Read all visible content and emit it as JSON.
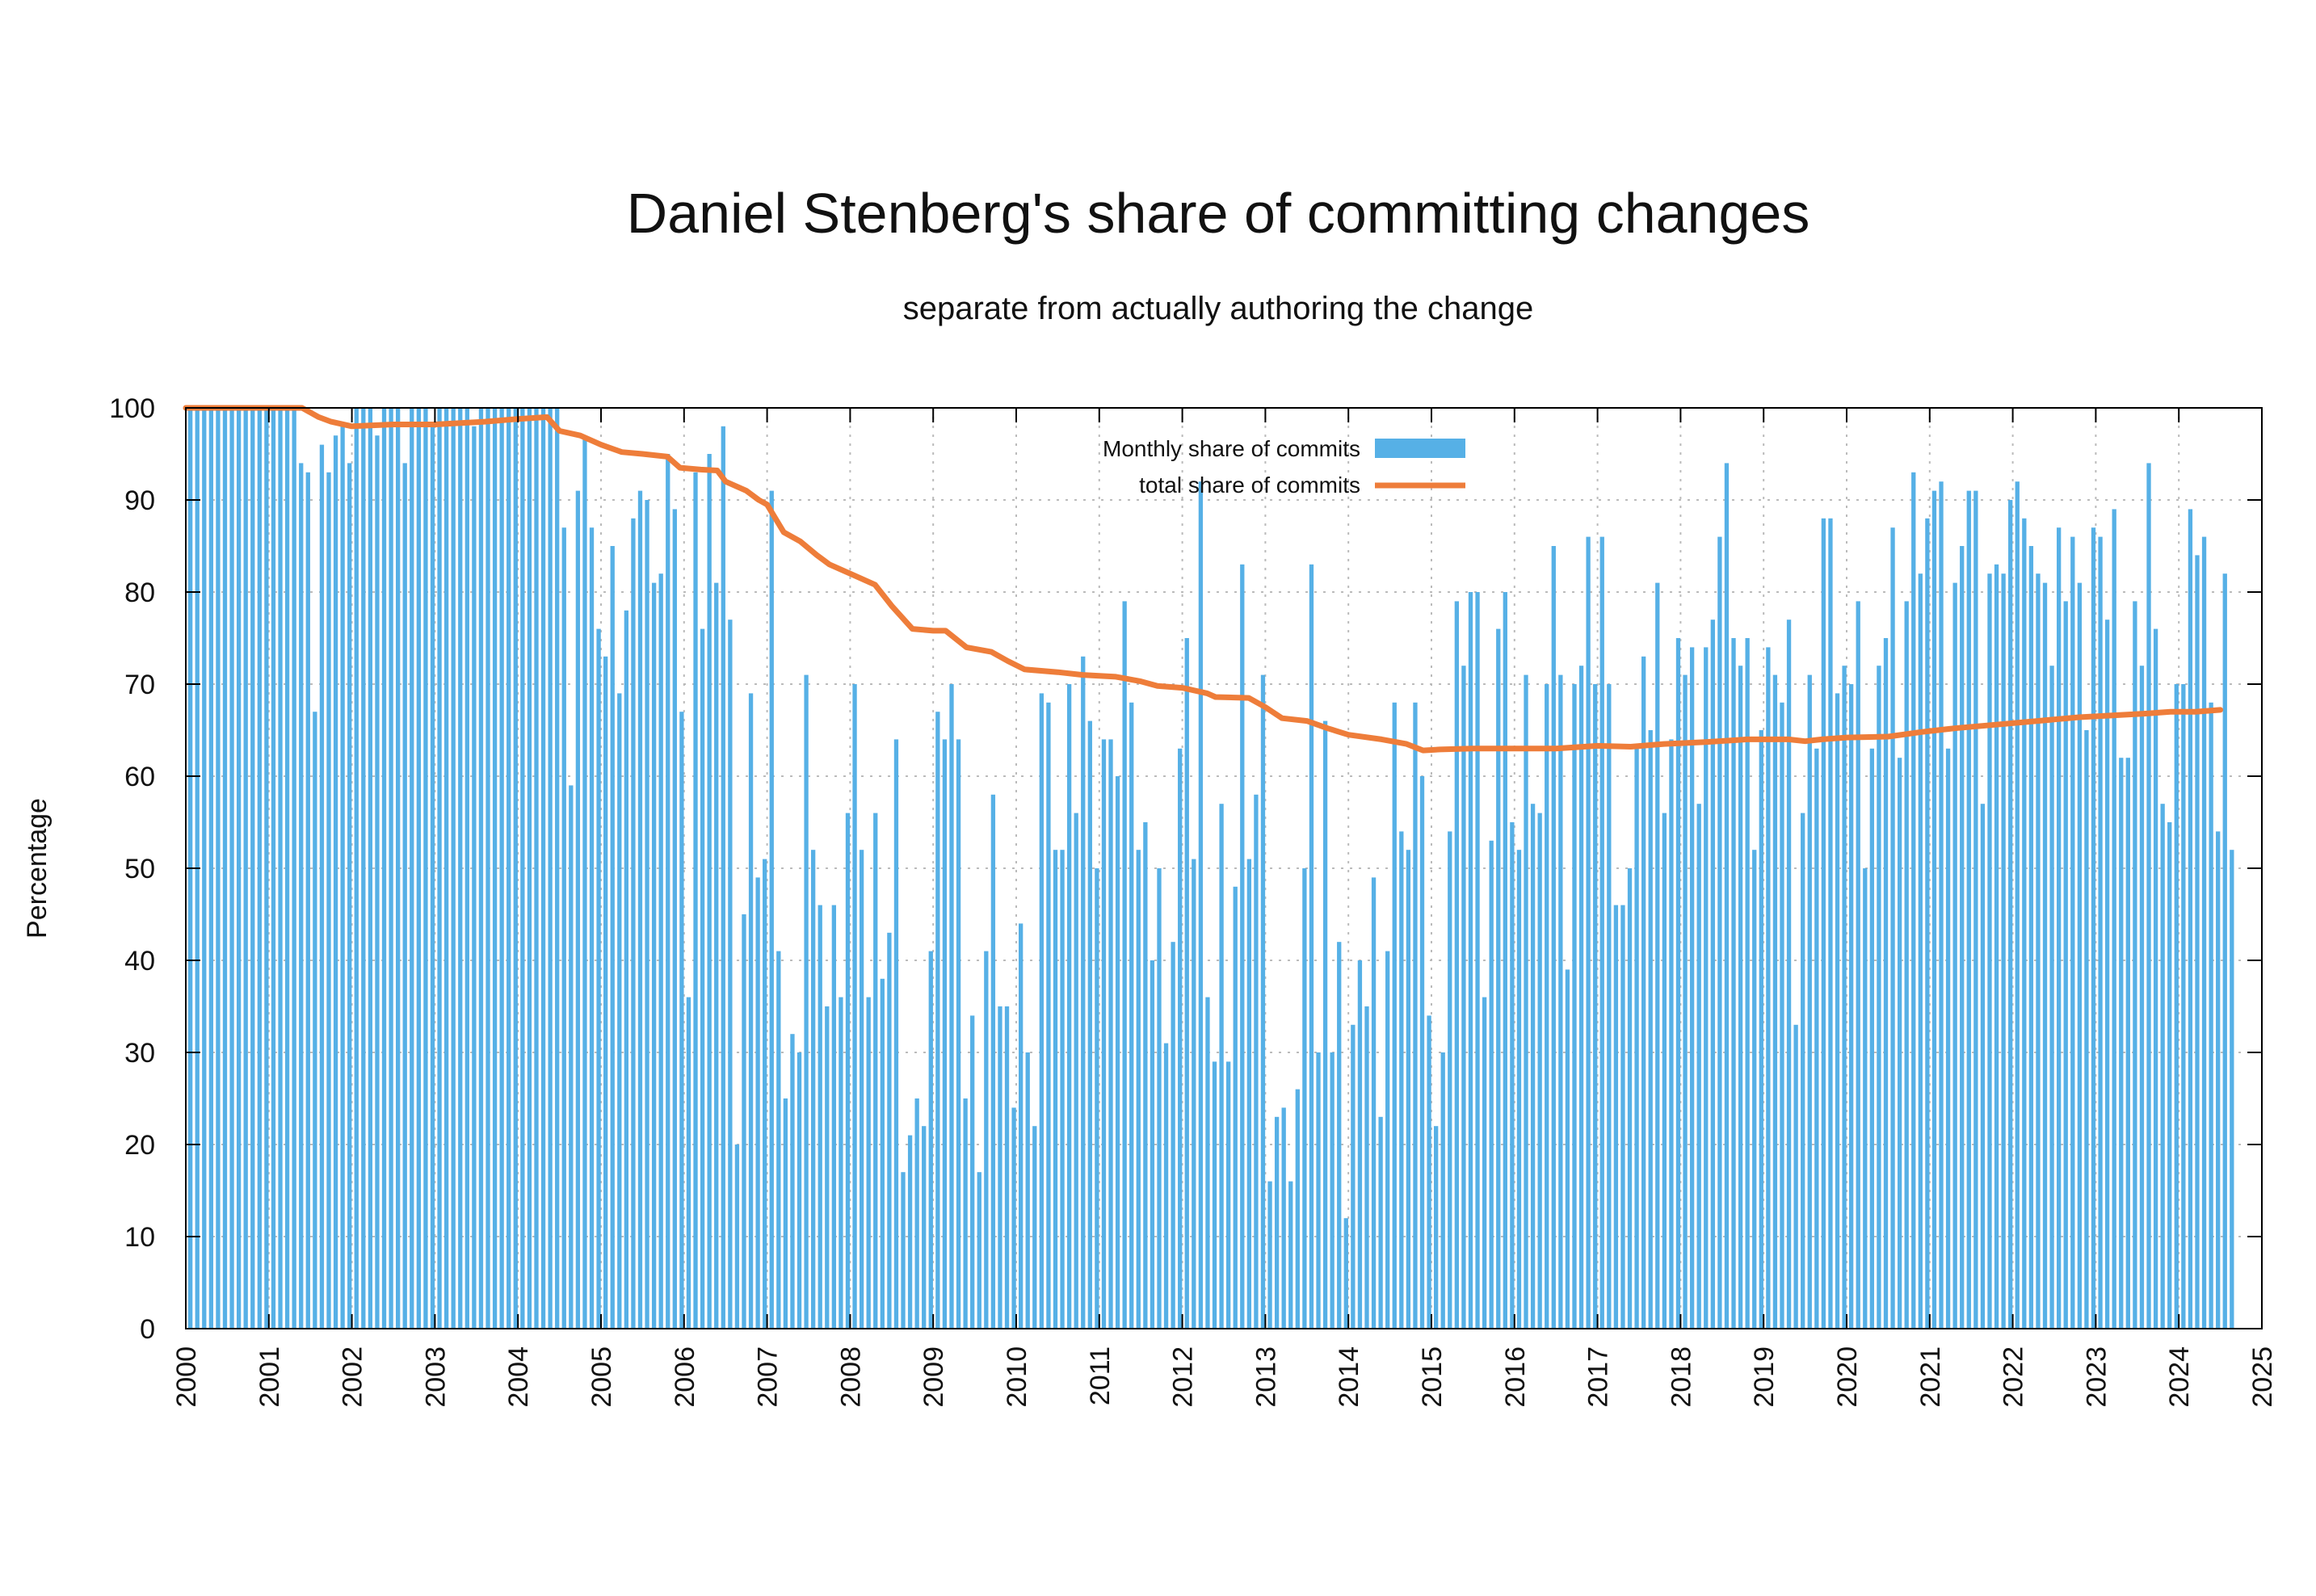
{
  "chart_data": {
    "type": "bar",
    "title": "Daniel Stenberg's share of committing changes",
    "subtitle": "separate from actually authoring the change",
    "xlabel": "",
    "ylabel": "Percentage",
    "ylim": [
      0,
      100
    ],
    "xlim": [
      2000,
      2025
    ],
    "yticks": [
      "0",
      "10",
      "20",
      "30",
      "40",
      "50",
      "60",
      "70",
      "80",
      "90",
      "100"
    ],
    "xticks": [
      "2000",
      "2001",
      "2002",
      "2003",
      "2004",
      "2005",
      "2006",
      "2007",
      "2008",
      "2009",
      "2010",
      "2011",
      "2012",
      "2013",
      "2014",
      "2015",
      "2016",
      "2017",
      "2018",
      "2019",
      "2020",
      "2021",
      "2022",
      "2023",
      "2024",
      "2025"
    ],
    "grid": true,
    "legend_position": "top-center",
    "colors": {
      "bars": "#56b0e6",
      "line": "#ee7d3a",
      "grid": "#bbbbbb",
      "axis": "#000000"
    },
    "series": [
      {
        "name": "Monthly share of commits",
        "type": "bar",
        "start_year": 2000,
        "months_per_year": 12,
        "values": [
          100,
          100,
          100,
          100,
          100,
          100,
          100,
          100,
          100,
          100,
          100,
          100,
          100,
          100,
          100,
          100,
          94,
          93,
          67,
          96,
          93,
          97,
          98,
          94,
          100,
          100,
          100,
          97,
          100,
          100,
          100,
          94,
          100,
          100,
          100,
          98,
          100,
          100,
          100,
          100,
          100,
          98,
          100,
          100,
          100,
          100,
          100,
          100,
          100,
          100,
          100,
          100,
          100,
          100,
          87,
          59,
          91,
          97,
          87,
          76,
          73,
          85,
          69,
          78,
          88,
          91,
          90,
          81,
          82,
          95,
          89,
          67,
          36,
          93,
          76,
          95,
          81,
          98,
          77,
          20,
          45,
          69,
          49,
          51,
          91,
          41,
          25,
          32,
          30,
          71,
          52,
          46,
          35,
          46,
          36,
          56,
          70,
          52,
          36,
          56,
          38,
          43,
          64,
          17,
          21,
          25,
          22,
          41,
          67,
          64,
          70,
          64,
          25,
          34,
          17,
          41,
          58,
          35,
          35,
          24,
          44,
          30,
          22,
          69,
          68,
          52,
          52,
          70,
          56,
          73,
          66,
          50,
          64,
          64,
          60,
          79,
          68,
          52,
          55,
          40,
          50,
          31,
          42,
          63,
          75,
          51,
          92,
          36,
          29,
          57,
          29,
          48,
          83,
          51,
          58,
          71,
          16,
          23,
          24,
          16,
          26,
          50,
          83,
          30,
          66,
          30,
          42,
          12,
          33,
          40,
          35,
          49,
          23,
          41,
          68,
          54,
          52,
          68,
          60,
          34,
          22,
          30,
          54,
          79,
          72,
          80,
          80,
          36,
          53,
          76,
          80,
          55,
          52,
          71,
          57,
          56,
          70,
          85,
          71,
          39,
          70,
          72,
          86,
          70,
          86,
          70,
          46,
          46,
          50,
          63,
          73,
          65,
          81,
          56,
          64,
          75,
          71,
          74,
          57,
          74,
          77,
          86,
          94,
          75,
          72,
          75,
          52,
          65,
          74,
          71,
          68,
          77,
          33,
          56,
          71,
          63,
          88,
          88,
          69,
          72,
          70,
          79,
          50,
          63,
          72,
          75,
          87,
          62,
          79,
          93,
          82,
          88,
          91,
          92,
          63,
          81,
          85,
          91,
          91,
          57,
          82,
          83,
          82,
          90,
          92,
          88,
          85,
          82,
          81,
          72,
          87,
          79,
          86,
          81,
          65,
          87,
          86,
          77,
          89,
          62,
          62,
          79,
          72,
          94,
          76,
          57,
          55,
          70,
          70,
          89,
          84,
          86,
          68,
          54,
          82,
          52
        ]
      },
      {
        "name": "total share of commits",
        "type": "line",
        "points": [
          [
            2000.0,
            100
          ],
          [
            2001.4,
            100
          ],
          [
            2001.6,
            99
          ],
          [
            2001.75,
            98.5
          ],
          [
            2002.0,
            98
          ],
          [
            2002.5,
            98.2
          ],
          [
            2003.0,
            98.2
          ],
          [
            2003.6,
            98.5
          ],
          [
            2004.0,
            98.8
          ],
          [
            2004.35,
            99
          ],
          [
            2004.5,
            97.5
          ],
          [
            2004.75,
            97
          ],
          [
            2005.0,
            96
          ],
          [
            2005.25,
            95.2
          ],
          [
            2005.5,
            95
          ],
          [
            2005.8,
            94.7
          ],
          [
            2005.95,
            93.5
          ],
          [
            2006.2,
            93.3
          ],
          [
            2006.4,
            93.2
          ],
          [
            2006.5,
            92
          ],
          [
            2006.75,
            91
          ],
          [
            2006.9,
            90
          ],
          [
            2007.0,
            89.5
          ],
          [
            2007.2,
            86.5
          ],
          [
            2007.4,
            85.5
          ],
          [
            2007.6,
            84
          ],
          [
            2007.75,
            83
          ],
          [
            2008.0,
            82
          ],
          [
            2008.3,
            80.8
          ],
          [
            2008.5,
            78.5
          ],
          [
            2008.75,
            76
          ],
          [
            2009.0,
            75.8
          ],
          [
            2009.15,
            75.8
          ],
          [
            2009.4,
            74
          ],
          [
            2009.7,
            73.5
          ],
          [
            2009.9,
            72.5
          ],
          [
            2010.1,
            71.6
          ],
          [
            2010.5,
            71.3
          ],
          [
            2010.8,
            71
          ],
          [
            2011.2,
            70.8
          ],
          [
            2011.5,
            70.3
          ],
          [
            2011.7,
            69.8
          ],
          [
            2012.0,
            69.6
          ],
          [
            2012.3,
            69
          ],
          [
            2012.4,
            68.6
          ],
          [
            2012.8,
            68.5
          ],
          [
            2013.0,
            67.5
          ],
          [
            2013.2,
            66.3
          ],
          [
            2013.5,
            66
          ],
          [
            2013.75,
            65.2
          ],
          [
            2014.0,
            64.5
          ],
          [
            2014.4,
            64
          ],
          [
            2014.7,
            63.5
          ],
          [
            2014.9,
            62.8
          ],
          [
            2015.1,
            62.9
          ],
          [
            2015.5,
            63
          ],
          [
            2016.0,
            63
          ],
          [
            2016.5,
            63
          ],
          [
            2017.0,
            63.3
          ],
          [
            2017.4,
            63.2
          ],
          [
            2017.8,
            63.5
          ],
          [
            2018.3,
            63.7
          ],
          [
            2018.8,
            64
          ],
          [
            2019.3,
            64
          ],
          [
            2019.5,
            63.8
          ],
          [
            2019.7,
            64
          ],
          [
            2020.0,
            64.2
          ],
          [
            2020.5,
            64.3
          ],
          [
            2020.9,
            64.8
          ],
          [
            2021.3,
            65.2
          ],
          [
            2021.8,
            65.6
          ],
          [
            2022.3,
            66
          ],
          [
            2022.8,
            66.4
          ],
          [
            2023.2,
            66.6
          ],
          [
            2023.6,
            66.8
          ],
          [
            2023.9,
            67
          ],
          [
            2024.2,
            67
          ],
          [
            2024.5,
            67.2
          ]
        ]
      }
    ]
  }
}
